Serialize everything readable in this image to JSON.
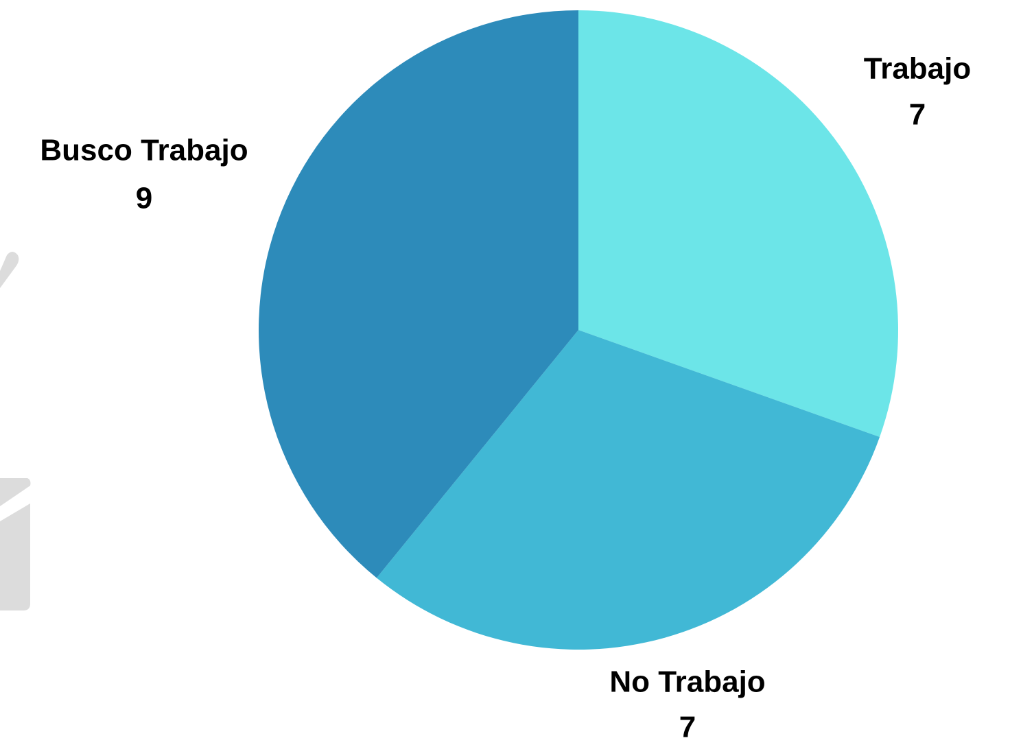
{
  "chart_data": {
    "type": "pie",
    "categories": [
      "Trabajo",
      "No Trabajo",
      "Busco Trabajo"
    ],
    "values": [
      7,
      7,
      9
    ],
    "colors": [
      "#6ce5e8",
      "#41b8d5",
      "#2d8bba"
    ]
  }
}
